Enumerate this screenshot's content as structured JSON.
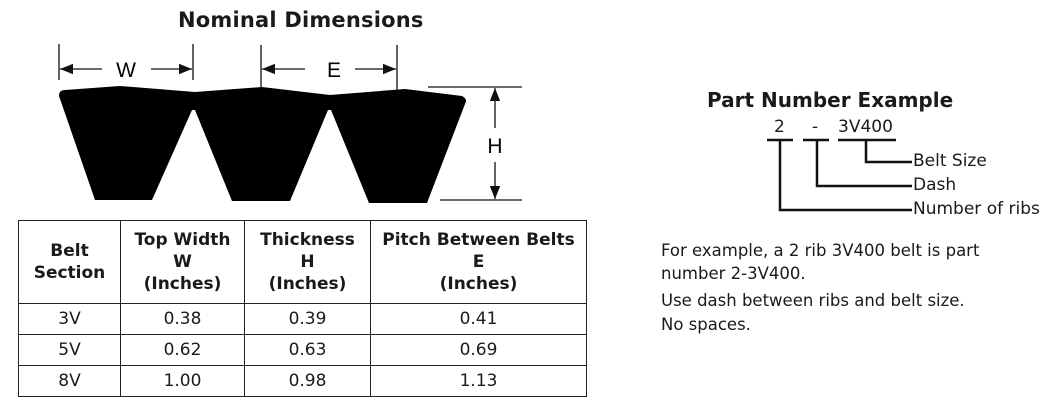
{
  "diagram": {
    "title": "Nominal Dimensions",
    "labels": {
      "w": "W",
      "e": "E",
      "h": "H"
    }
  },
  "table": {
    "headers": [
      [
        "Belt",
        "Section"
      ],
      [
        "Top Width",
        "W",
        "(Inches)"
      ],
      [
        "Thickness",
        "H",
        "(Inches)"
      ],
      [
        "Pitch Between Belts",
        "E",
        "(Inches)"
      ]
    ],
    "rows": [
      [
        "3V",
        "0.38",
        "0.39",
        "0.41"
      ],
      [
        "5V",
        "0.62",
        "0.63",
        "0.69"
      ],
      [
        "8V",
        "1.00",
        "0.98",
        "1.13"
      ]
    ]
  },
  "part_number": {
    "title": "Part Number Example",
    "ribs": "2",
    "dash": "-",
    "size": "3V400",
    "labels": {
      "size": "Belt Size",
      "dash": "Dash",
      "ribs": "Number of ribs"
    },
    "note": [
      "For example, a 2 rib 3V400 belt is part",
      "number 2-3V400.",
      "Use dash between ribs and belt size.",
      "No spaces."
    ]
  }
}
